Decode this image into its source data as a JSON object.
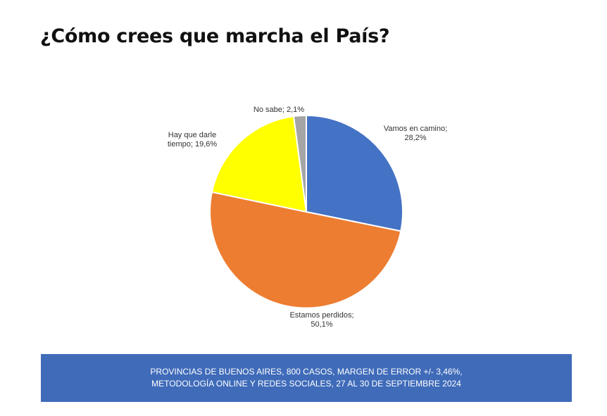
{
  "page": {
    "title": "¿Cómo crees que marcha el País?",
    "footer_line1": "PROVINCIAS DE BUENOS AIRES, 800 CASOS, MARGEN DE ERROR +/- 3,46%,",
    "footer_line2": "METODOLOGÍA ONLINE Y REDES SOCIALES, 27 AL 30 DE SEPTIEMBRE 2024",
    "footer_color": "#3f6bb9"
  },
  "chart_data": {
    "type": "pie",
    "title": "",
    "slices": [
      {
        "name": "Vamos en camino",
        "value": 28.2,
        "label_line1": "Vamos en camino;",
        "label_line2": "28,2%",
        "color": "#4472c4"
      },
      {
        "name": "Estamos perdidos",
        "value": 50.1,
        "label_line1": "Estamos perdidos;",
        "label_line2": "50,1%",
        "color": "#ed7d31"
      },
      {
        "name": "Hay que darle tiempo",
        "value": 19.6,
        "label_line1": "Hay que darle",
        "label_line2": "tiempo; 19,6%",
        "color": "#ffff00"
      },
      {
        "name": "No sabe",
        "value": 2.1,
        "label_line1": "No sabe; 2,1%",
        "label_line2": "",
        "color": "#a5a5a5"
      }
    ]
  }
}
